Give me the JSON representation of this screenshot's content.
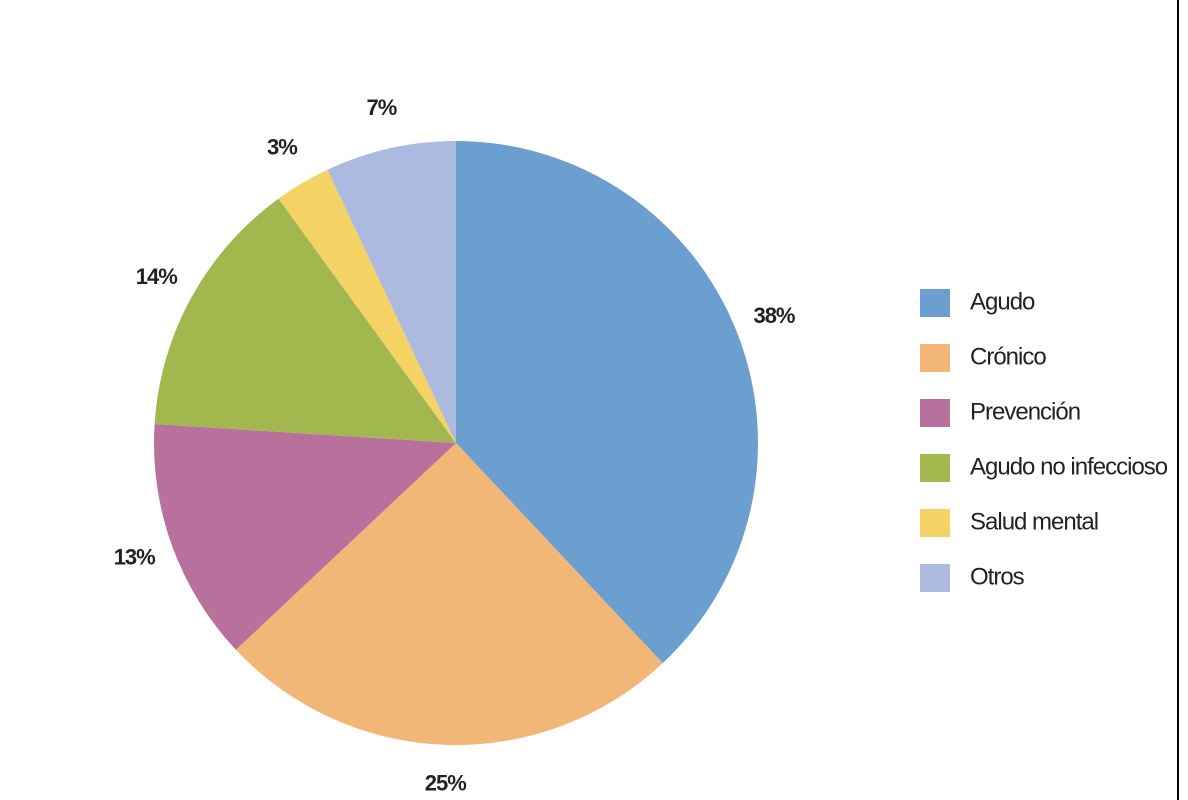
{
  "chart_data": {
    "type": "pie",
    "categories": [
      "Agudo",
      "Crónico",
      "Prevención",
      "Agudo no infeccioso",
      "Salud mental",
      "Otros"
    ],
    "values": [
      38,
      25,
      13,
      14,
      3,
      7
    ],
    "value_labels": [
      "38%",
      "25%",
      "13%",
      "14%",
      "3%",
      "7%"
    ],
    "colors": [
      "#6b9fd0",
      "#f2b676",
      "#b8719c",
      "#a2b84f",
      "#f4d263",
      "#abbade"
    ],
    "legend": "right"
  }
}
